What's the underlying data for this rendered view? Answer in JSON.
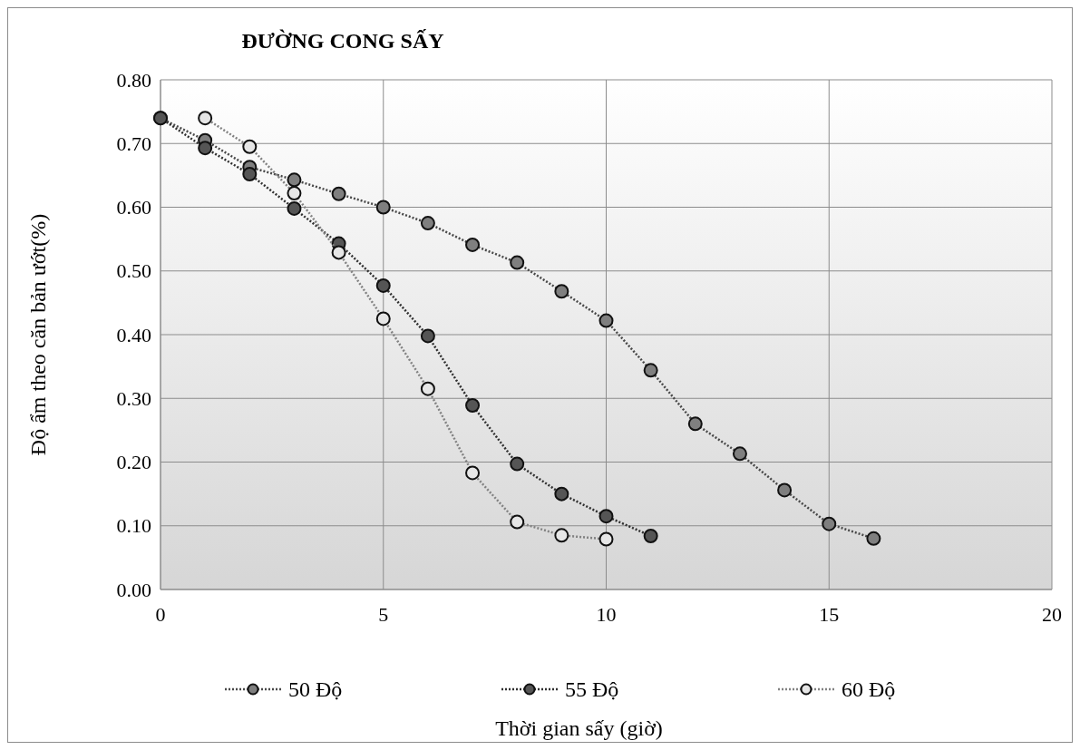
{
  "chart_data": {
    "type": "line",
    "title": "ĐƯỜNG CONG SẤY",
    "xlabel": "Thời gian sấy (giờ)",
    "ylabel": "Độ ẩm theo căn bản ướt(%)",
    "xlim": [
      0,
      20
    ],
    "xticks": [
      0,
      5,
      10,
      15,
      20
    ],
    "ylim": [
      0,
      0.8
    ],
    "yticks": [
      {
        "value": 0,
        "label": "0.00"
      },
      {
        "value": 0.1,
        "label": "0.10"
      },
      {
        "value": 0.2,
        "label": "0.20"
      },
      {
        "value": 0.3,
        "label": "0.30"
      },
      {
        "value": 0.4,
        "label": "0.40"
      },
      {
        "value": 0.5,
        "label": "0.50"
      },
      {
        "value": 0.6,
        "label": "0.60"
      },
      {
        "value": 0.7,
        "label": "0.70"
      },
      {
        "value": 0.8,
        "label": "0.80"
      }
    ],
    "grid": true,
    "legend": "bottom",
    "marker": "circle",
    "line_style": "dotted",
    "series": [
      {
        "name": "50 Độ",
        "color": "#7f7f7f",
        "x": [
          0,
          1,
          2,
          3,
          4,
          5,
          6,
          7,
          8,
          9,
          10,
          11,
          12,
          13,
          14,
          15,
          16
        ],
        "values": [
          0.74,
          0.705,
          0.663,
          0.643,
          0.621,
          0.6,
          0.575,
          0.541,
          0.513,
          0.468,
          0.422,
          0.344,
          0.26,
          0.213,
          0.156,
          0.103,
          0.08
        ]
      },
      {
        "name": "55 Độ",
        "color": "#555555",
        "x": [
          0,
          1,
          2,
          3,
          4,
          5,
          6,
          7,
          8,
          9,
          10,
          11
        ],
        "values": [
          0.74,
          0.693,
          0.652,
          0.598,
          0.543,
          0.477,
          0.398,
          0.289,
          0.197,
          0.15,
          0.115,
          0.084
        ]
      },
      {
        "name": "60 Độ",
        "color": "#e6e6e6",
        "x": [
          1,
          2,
          3,
          4,
          5,
          6,
          7,
          8,
          9,
          10
        ],
        "values": [
          0.74,
          0.695,
          0.622,
          0.529,
          0.425,
          0.315,
          0.183,
          0.106,
          0.085,
          0.079
        ]
      }
    ]
  }
}
